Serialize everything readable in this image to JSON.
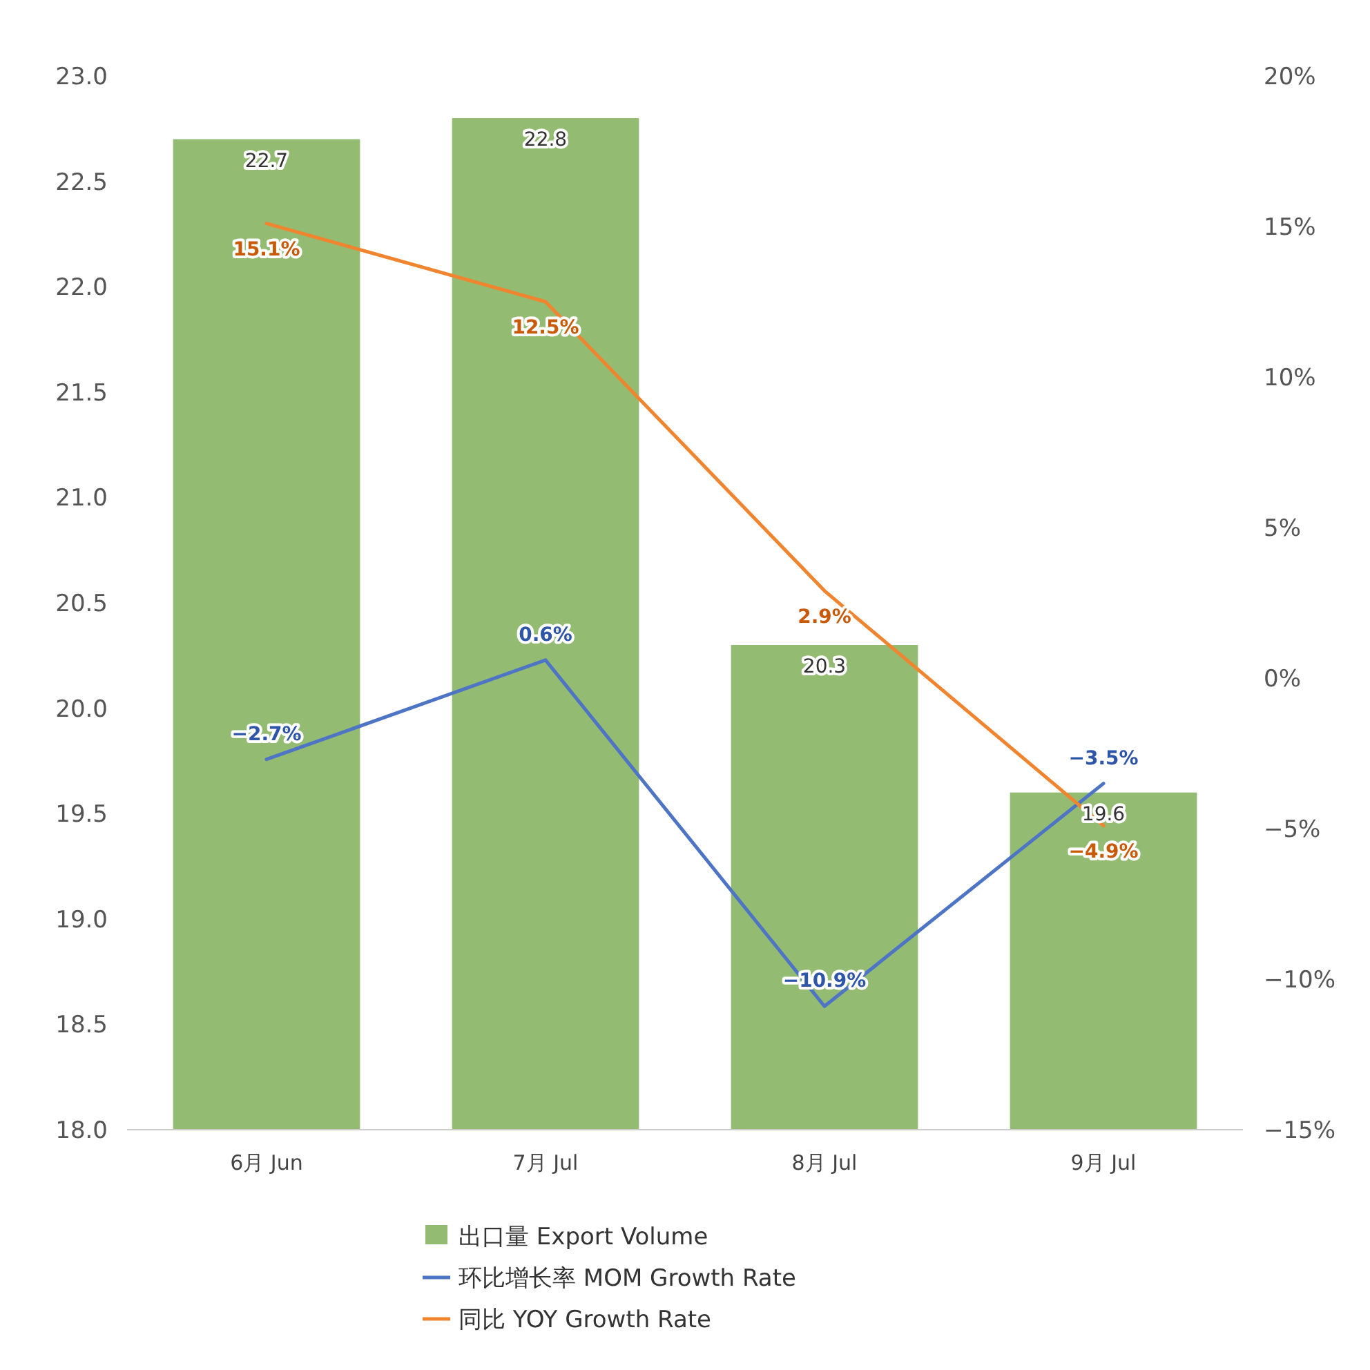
{
  "chart_data": {
    "type": "bar",
    "categories": [
      "6月 Jun",
      "7月 Jul",
      "8月 Jul",
      "9月 Jul"
    ],
    "series": [
      {
        "name": "出口量 Export Volume",
        "color": "#93bb72",
        "values": [
          22.7,
          22.8,
          20.3,
          19.6
        ],
        "value_labels": [
          "22.7",
          "22.8",
          "20.3",
          "19.6"
        ]
      },
      {
        "name": "环比增长率 MOM Growth Rate",
        "type": "line",
        "axis": "y2",
        "color": "#4d74c5",
        "values": [
          -2.7,
          0.6,
          -10.9,
          -3.5
        ],
        "value_labels": [
          "−2.7%",
          "0.6%",
          "−10.9%",
          "−3.5%"
        ]
      },
      {
        "name": "同比 YOY Growth Rate",
        "type": "line",
        "axis": "y2",
        "color": "#f0842f",
        "values": [
          15.1,
          12.5,
          2.9,
          -4.9
        ],
        "value_labels": [
          "15.1%",
          "12.5%",
          "2.9%",
          "−4.9%"
        ]
      }
    ],
    "ylim": [
      18,
      23
    ],
    "yticks": [
      {
        "value": 18,
        "label": "18.0"
      },
      {
        "value": 18.5,
        "label": "18.5"
      },
      {
        "value": 19,
        "label": "19.0"
      },
      {
        "value": 19.5,
        "label": "19.5"
      },
      {
        "value": 20,
        "label": "20.0"
      },
      {
        "value": 20.5,
        "label": "20.5"
      },
      {
        "value": 21,
        "label": "21.0"
      },
      {
        "value": 21.5,
        "label": "21.5"
      },
      {
        "value": 22,
        "label": "22.0"
      },
      {
        "value": 22.5,
        "label": "22.5"
      },
      {
        "value": 23,
        "label": "23.0"
      }
    ],
    "y2lim": [
      -15,
      20
    ],
    "y2ticks": [
      {
        "value": -15,
        "label": "−15%"
      },
      {
        "value": -10,
        "label": "−10%"
      },
      {
        "value": -5,
        "label": "−5%"
      },
      {
        "value": 0,
        "label": "0%"
      },
      {
        "value": 5,
        "label": "5%"
      },
      {
        "value": 10,
        "label": "10%"
      },
      {
        "value": 15,
        "label": "15%"
      },
      {
        "value": 20,
        "label": "20%"
      }
    ],
    "legend": "bottom"
  }
}
